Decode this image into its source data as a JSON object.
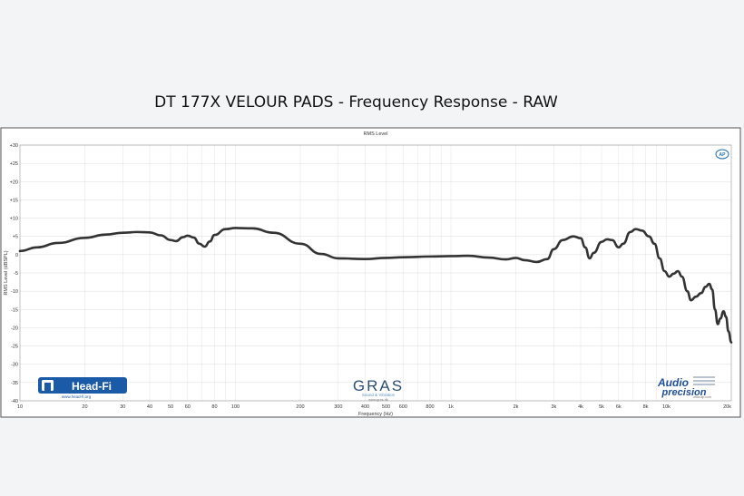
{
  "chart_data": {
    "type": "line",
    "title": "DT 177X VELOUR PADS - Frequency Response - RAW",
    "subtitle": "RMS Level",
    "xlabel": "Frequency (Hz)",
    "ylabel": "RMS Level (dBSPL)",
    "x_scale": "log",
    "xlim": [
      10,
      20000
    ],
    "ylim": [
      -40,
      30
    ],
    "grid": true,
    "x_ticks": [
      {
        "v": 10,
        "label": "10"
      },
      {
        "v": 20,
        "label": "20"
      },
      {
        "v": 30,
        "label": "30"
      },
      {
        "v": 40,
        "label": "40"
      },
      {
        "v": 50,
        "label": "50"
      },
      {
        "v": 60,
        "label": "60"
      },
      {
        "v": 80,
        "label": "80"
      },
      {
        "v": 100,
        "label": "100"
      },
      {
        "v": 200,
        "label": "200"
      },
      {
        "v": 300,
        "label": "300"
      },
      {
        "v": 400,
        "label": "400"
      },
      {
        "v": 500,
        "label": "500"
      },
      {
        "v": 600,
        "label": "600"
      },
      {
        "v": 800,
        "label": "800"
      },
      {
        "v": 1000,
        "label": "1k"
      },
      {
        "v": 2000,
        "label": "2k"
      },
      {
        "v": 3000,
        "label": "3k"
      },
      {
        "v": 4000,
        "label": "4k"
      },
      {
        "v": 5000,
        "label": "5k"
      },
      {
        "v": 6000,
        "label": "6k"
      },
      {
        "v": 8000,
        "label": "8k"
      },
      {
        "v": 10000,
        "label": "10k"
      },
      {
        "v": 20000,
        "label": "20k"
      }
    ],
    "y_ticks": [
      {
        "v": 30,
        "label": "+30"
      },
      {
        "v": 25,
        "label": "+25"
      },
      {
        "v": 20,
        "label": "+20"
      },
      {
        "v": 15,
        "label": "+15"
      },
      {
        "v": 10,
        "label": "+10"
      },
      {
        "v": 5,
        "label": "+5"
      },
      {
        "v": 0,
        "label": "0"
      },
      {
        "v": -5,
        "label": "-5"
      },
      {
        "v": -10,
        "label": "-10"
      },
      {
        "v": -15,
        "label": "-15"
      },
      {
        "v": -20,
        "label": "-20"
      },
      {
        "v": -25,
        "label": "-25"
      },
      {
        "v": -30,
        "label": "-30"
      },
      {
        "v": -35,
        "label": "-35"
      },
      {
        "v": -40,
        "label": "-40"
      }
    ],
    "series": [
      {
        "color": "#333333",
        "points": [
          [
            10,
            1.0
          ],
          [
            12,
            2.0
          ],
          [
            15,
            3.2
          ],
          [
            20,
            4.6
          ],
          [
            25,
            5.5
          ],
          [
            30,
            6.0
          ],
          [
            35,
            6.2
          ],
          [
            40,
            6.1
          ],
          [
            45,
            5.3
          ],
          [
            50,
            4.0
          ],
          [
            53,
            3.7
          ],
          [
            57,
            4.8
          ],
          [
            60,
            5.2
          ],
          [
            64,
            4.7
          ],
          [
            68,
            3.0
          ],
          [
            72,
            2.2
          ],
          [
            76,
            3.6
          ],
          [
            80,
            5.4
          ],
          [
            90,
            7.0
          ],
          [
            100,
            7.3
          ],
          [
            120,
            7.2
          ],
          [
            150,
            6.0
          ],
          [
            200,
            3.0
          ],
          [
            250,
            0.2
          ],
          [
            300,
            -1.0
          ],
          [
            400,
            -1.2
          ],
          [
            500,
            -0.9
          ],
          [
            600,
            -0.7
          ],
          [
            800,
            -0.5
          ],
          [
            1000,
            -0.4
          ],
          [
            1200,
            -0.3
          ],
          [
            1500,
            -0.8
          ],
          [
            1800,
            -1.3
          ],
          [
            2000,
            -0.9
          ],
          [
            2200,
            -1.5
          ],
          [
            2500,
            -2.0
          ],
          [
            2800,
            -1.2
          ],
          [
            3000,
            1.5
          ],
          [
            3300,
            4.0
          ],
          [
            3700,
            5.0
          ],
          [
            4000,
            4.5
          ],
          [
            4200,
            2.0
          ],
          [
            4400,
            -1.0
          ],
          [
            4600,
            0.5
          ],
          [
            5000,
            3.5
          ],
          [
            5300,
            4.2
          ],
          [
            5600,
            4.0
          ],
          [
            6000,
            2.0
          ],
          [
            6300,
            3.0
          ],
          [
            6800,
            6.2
          ],
          [
            7200,
            7.0
          ],
          [
            7700,
            6.6
          ],
          [
            8300,
            5.0
          ],
          [
            8800,
            3.0
          ],
          [
            9300,
            -1.0
          ],
          [
            9800,
            -4.5
          ],
          [
            10300,
            -6.0
          ],
          [
            10800,
            -5.2
          ],
          [
            11300,
            -4.5
          ],
          [
            11800,
            -6.0
          ],
          [
            12500,
            -10.0
          ],
          [
            13000,
            -12.5
          ],
          [
            13700,
            -11.5
          ],
          [
            14500,
            -10.5
          ],
          [
            15200,
            -8.8
          ],
          [
            15800,
            -8.0
          ],
          [
            16300,
            -9.5
          ],
          [
            16800,
            -15.0
          ],
          [
            17300,
            -19.0
          ],
          [
            17800,
            -17.5
          ],
          [
            18400,
            -15.5
          ],
          [
            18900,
            -17.0
          ],
          [
            19400,
            -21.0
          ],
          [
            20000,
            -24.0
          ]
        ]
      }
    ],
    "legend": "none",
    "annotations": {
      "headfi_logo": "Head-Fi",
      "headfi_url": "www.head-fi.org",
      "gras_logo": "GRAS",
      "gras_tagline": "Sound & Vibration",
      "gras_url": "www.gras.dk",
      "ap_logo_line1": "Audio",
      "ap_logo_line2": "precision",
      "ap_url": "www.ap.com",
      "ap_badge": "AP"
    }
  }
}
